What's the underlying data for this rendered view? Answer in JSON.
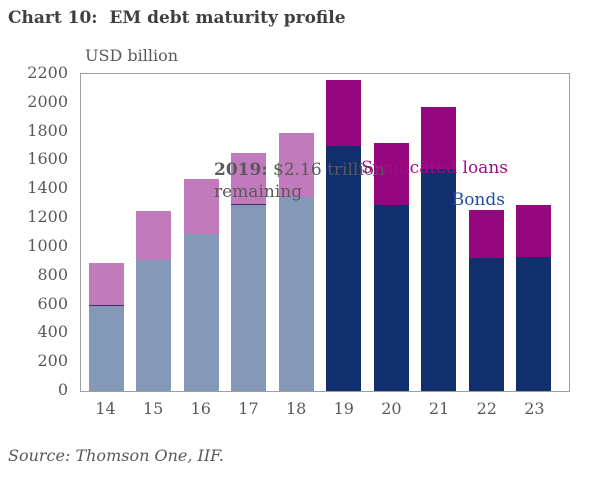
{
  "chart_data": {
    "type": "bar",
    "stacked": true,
    "title": "Chart 10:  EM debt maturity profile",
    "unit_label": "USD billion",
    "source": "Source: Thomson One, IIF.",
    "annotation": {
      "year_bold": "2019:",
      "line1_rest": "$2.16 trillion",
      "line2": "remaining"
    },
    "categories": [
      "14",
      "15",
      "16",
      "17",
      "18",
      "19",
      "20",
      "21",
      "22",
      "23"
    ],
    "series": [
      {
        "name": "Bonds",
        "values": [
          590,
          910,
          1090,
          1290,
          1345,
          1700,
          1290,
          1540,
          920,
          930
        ]
      },
      {
        "name": "Syndicated loans",
        "values": [
          300,
          340,
          380,
          360,
          445,
          460,
          430,
          430,
          330,
          360
        ]
      }
    ],
    "past_years_count": 5,
    "divider_years": [
      "14",
      "17"
    ],
    "ylim": [
      0,
      2200
    ],
    "y_ticks": [
      2200,
      2000,
      1800,
      1600,
      1400,
      1200,
      1000,
      800,
      600,
      400,
      200,
      0
    ],
    "grid": false,
    "legend": {
      "position": "top-right-inside",
      "items": [
        {
          "label": "Syndicated loans",
          "text_color": "#a20b87"
        },
        {
          "label": "Bonds",
          "text_color": "#1f4f9d"
        }
      ]
    },
    "colors": {
      "bonds_past": "#8498b8",
      "loans_past": "#c17bbd",
      "bonds_future": "#122f6d",
      "loans_future": "#94077f",
      "segment_divider": "#4a2a6e",
      "axis_text": "#595959",
      "title_text": "#3f3f3f",
      "plot_border": "#9e9e9e"
    }
  }
}
